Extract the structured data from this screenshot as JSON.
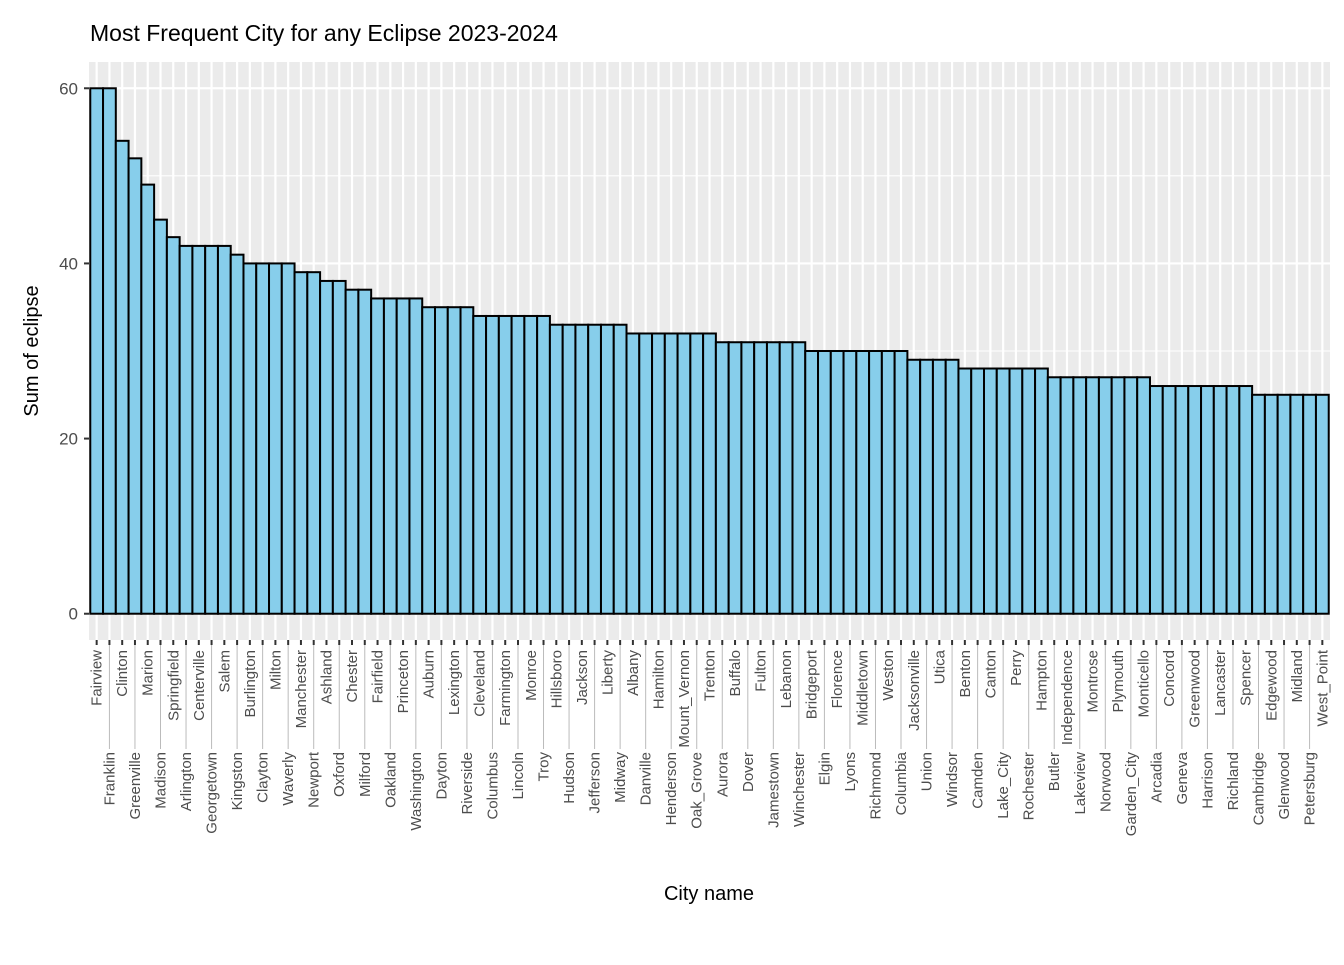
{
  "chart_data": {
    "type": "bar",
    "title": "Most Frequent City for any Eclipse 2023-2024",
    "xlabel": "City name",
    "ylabel": "Sum of eclipse",
    "ylim": [
      0,
      60
    ],
    "yticks": [
      0,
      20,
      40,
      60
    ],
    "grid": true,
    "colors": {
      "bar_fill": "#87CEEB",
      "bar_stroke": "#000000",
      "panel": "#EBEBEB",
      "grid": "#FFFFFF",
      "tick_text": "#4D4D4D"
    },
    "categories": [
      "Fairview",
      "Franklin",
      "Clinton",
      "Greenville",
      "Marion",
      "Madison",
      "Springfield",
      "Arlington",
      "Centerville",
      "Georgetown",
      "Salem",
      "Kingston",
      "Burlington",
      "Clayton",
      "Milton",
      "Waverly",
      "Manchester",
      "Newport",
      "Ashland",
      "Oxford",
      "Chester",
      "Milford",
      "Fairfield",
      "Oakland",
      "Princeton",
      "Washington",
      "Auburn",
      "Dayton",
      "Lexington",
      "Riverside",
      "Cleveland",
      "Columbus",
      "Farmington",
      "Lincoln",
      "Monroe",
      "Troy",
      "Hillsboro",
      "Hudson",
      "Jackson",
      "Jefferson",
      "Liberty",
      "Midway",
      "Albany",
      "Danville",
      "Hamilton",
      "Henderson",
      "Mount_Vernon",
      "Oak_Grove",
      "Trenton",
      "Aurora",
      "Buffalo",
      "Dover",
      "Fulton",
      "Jamestown",
      "Lebanon",
      "Winchester",
      "Bridgeport",
      "Elgin",
      "Florence",
      "Lyons",
      "Middletown",
      "Richmond",
      "Weston",
      "Columbia",
      "Jacksonville",
      "Union",
      "Utica",
      "Windsor",
      "Benton",
      "Camden",
      "Canton",
      "Lake_City",
      "Perry",
      "Rochester",
      "Hampton",
      "Butler",
      "Independence",
      "Lakeview",
      "Montrose",
      "Norwood",
      "Plymouth",
      "Garden_City",
      "Monticello",
      "Arcadia",
      "Concord",
      "Geneva",
      "Greenwood",
      "Harrison",
      "Lancaster",
      "Richland",
      "Spencer",
      "Cambridge",
      "Edgewood",
      "Glenwood",
      "Midland",
      "Petersburg",
      "West_Point"
    ],
    "values": [
      60,
      60,
      54,
      52,
      49,
      45,
      43,
      42,
      42,
      42,
      42,
      41,
      40,
      40,
      40,
      40,
      39,
      39,
      38,
      38,
      37,
      37,
      36,
      36,
      36,
      36,
      35,
      35,
      35,
      35,
      34,
      34,
      34,
      34,
      34,
      34,
      33,
      33,
      33,
      33,
      33,
      33,
      32,
      32,
      32,
      32,
      32,
      32,
      32,
      31,
      31,
      31,
      31,
      31,
      31,
      31,
      30,
      30,
      30,
      30,
      30,
      30,
      30,
      30,
      29,
      29,
      29,
      29,
      28,
      28,
      28,
      28,
      28,
      28,
      28,
      27,
      27,
      27,
      27,
      27,
      27,
      27,
      27,
      26,
      26,
      26,
      26,
      26,
      26,
      26,
      26,
      25,
      25,
      25,
      25,
      25,
      25
    ]
  }
}
